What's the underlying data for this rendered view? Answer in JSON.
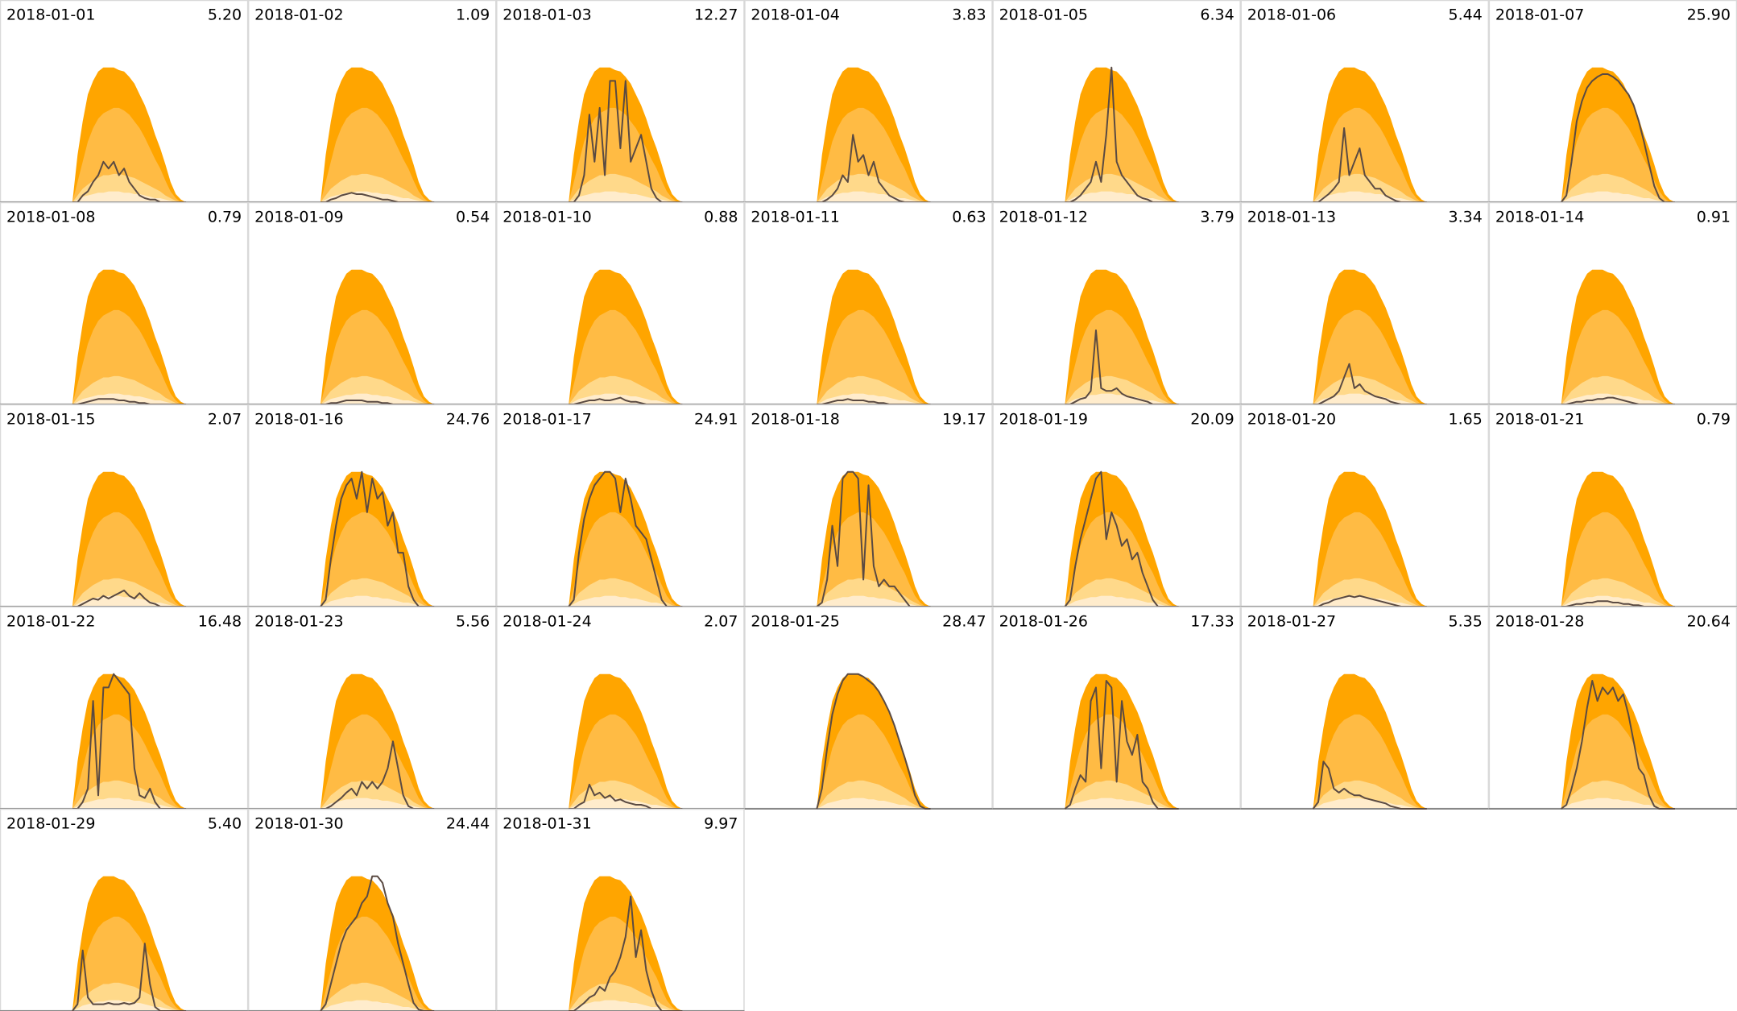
{
  "chart_data": {
    "type": "line",
    "columns": 7,
    "xlim": [
      0,
      24
    ],
    "ylim": [
      0,
      1.5
    ],
    "x": [
      7,
      7.5,
      8,
      8.5,
      9,
      9.5,
      10,
      10.5,
      11,
      11.5,
      12,
      12.5,
      13,
      13.5,
      14,
      14.5,
      15,
      15.5,
      16,
      16.5,
      17,
      17.5,
      18
    ],
    "line_color": "#5a4a42",
    "bands": [
      {
        "color": "#ffa500",
        "values": [
          0,
          0.35,
          0.6,
          0.8,
          0.9,
          0.97,
          1,
          1,
          1,
          0.98,
          0.97,
          0.93,
          0.88,
          0.8,
          0.72,
          0.62,
          0.5,
          0.4,
          0.28,
          0.15,
          0.06,
          0.02,
          0
        ]
      },
      {
        "color": "#ffbb44",
        "values": [
          0,
          0.15,
          0.3,
          0.45,
          0.55,
          0.62,
          0.66,
          0.68,
          0.7,
          0.7,
          0.68,
          0.65,
          0.6,
          0.55,
          0.48,
          0.4,
          0.32,
          0.25,
          0.16,
          0.08,
          0.03,
          0,
          0
        ]
      },
      {
        "color": "#ffd98a",
        "values": [
          0,
          0.05,
          0.1,
          0.13,
          0.16,
          0.18,
          0.2,
          0.2,
          0.21,
          0.21,
          0.2,
          0.19,
          0.18,
          0.16,
          0.14,
          0.12,
          0.1,
          0.08,
          0.05,
          0.03,
          0.01,
          0,
          0
        ]
      },
      {
        "color": "#ffeccc",
        "values": [
          0,
          0.02,
          0.04,
          0.05,
          0.06,
          0.07,
          0.07,
          0.08,
          0.08,
          0.08,
          0.07,
          0.07,
          0.06,
          0.06,
          0.05,
          0.04,
          0.03,
          0.03,
          0.02,
          0.01,
          0,
          0,
          0
        ]
      }
    ],
    "panels": [
      {
        "title": "2018-01-01",
        "total": "5.20",
        "values": [
          0,
          0,
          0.05,
          0.08,
          0.15,
          0.2,
          0.3,
          0.25,
          0.3,
          0.2,
          0.25,
          0.15,
          0.1,
          0.05,
          0.03,
          0.02,
          0.02,
          0,
          0,
          0,
          0,
          0,
          0
        ]
      },
      {
        "title": "2018-01-02",
        "total": "1.09",
        "values": [
          0,
          0,
          0.02,
          0.03,
          0.05,
          0.06,
          0.07,
          0.06,
          0.06,
          0.05,
          0.04,
          0.03,
          0.02,
          0.02,
          0.01,
          0,
          0,
          0,
          0,
          0,
          0,
          0,
          0
        ]
      },
      {
        "title": "2018-01-03",
        "total": "12.27",
        "values": [
          0,
          0,
          0.05,
          0.2,
          0.65,
          0.3,
          0.7,
          0.2,
          0.9,
          0.9,
          0.4,
          0.9,
          0.3,
          0.4,
          0.5,
          0.3,
          0.1,
          0.03,
          0,
          0,
          0,
          0,
          0
        ]
      },
      {
        "title": "2018-01-04",
        "total": "3.83",
        "values": [
          0,
          0,
          0.02,
          0.05,
          0.1,
          0.2,
          0.15,
          0.5,
          0.3,
          0.35,
          0.2,
          0.3,
          0.15,
          0.1,
          0.05,
          0.03,
          0.01,
          0,
          0,
          0,
          0,
          0,
          0
        ]
      },
      {
        "title": "2018-01-05",
        "total": "6.34",
        "values": [
          0,
          0,
          0.02,
          0.05,
          0.1,
          0.15,
          0.3,
          0.15,
          0.5,
          1,
          0.3,
          0.2,
          0.15,
          0.1,
          0.05,
          0.03,
          0.02,
          0,
          0,
          0,
          0,
          0,
          0
        ]
      },
      {
        "title": "2018-01-06",
        "total": "5.44",
        "values": [
          0,
          0,
          0.03,
          0.06,
          0.1,
          0.15,
          0.55,
          0.2,
          0.3,
          0.4,
          0.2,
          0.15,
          0.1,
          0.1,
          0.05,
          0.03,
          0.01,
          0,
          0,
          0,
          0,
          0,
          0
        ]
      },
      {
        "title": "2018-01-07",
        "total": "25.90",
        "values": [
          0,
          0.05,
          0.3,
          0.6,
          0.75,
          0.85,
          0.9,
          0.93,
          0.95,
          0.95,
          0.93,
          0.9,
          0.85,
          0.8,
          0.72,
          0.6,
          0.45,
          0.28,
          0.12,
          0.03,
          0,
          0,
          0
        ]
      },
      {
        "title": "2018-01-08",
        "total": "0.79",
        "values": [
          0,
          0,
          0.01,
          0.02,
          0.03,
          0.04,
          0.04,
          0.04,
          0.04,
          0.03,
          0.03,
          0.02,
          0.02,
          0.01,
          0.01,
          0,
          0,
          0,
          0,
          0,
          0,
          0,
          0
        ]
      },
      {
        "title": "2018-01-09",
        "total": "0.54",
        "values": [
          0,
          0,
          0.01,
          0.01,
          0.02,
          0.03,
          0.03,
          0.03,
          0.03,
          0.02,
          0.02,
          0.02,
          0.01,
          0.01,
          0,
          0,
          0,
          0,
          0,
          0,
          0,
          0,
          0
        ]
      },
      {
        "title": "2018-01-10",
        "total": "0.88",
        "values": [
          0,
          0,
          0.01,
          0.02,
          0.03,
          0.03,
          0.04,
          0.03,
          0.03,
          0.04,
          0.05,
          0.03,
          0.02,
          0.02,
          0.01,
          0,
          0,
          0,
          0,
          0,
          0,
          0,
          0
        ]
      },
      {
        "title": "2018-01-11",
        "total": "0.63",
        "values": [
          0,
          0,
          0.01,
          0.02,
          0.03,
          0.03,
          0.04,
          0.03,
          0.03,
          0.03,
          0.02,
          0.02,
          0.01,
          0.01,
          0,
          0,
          0,
          0,
          0,
          0,
          0,
          0,
          0
        ]
      },
      {
        "title": "2018-01-12",
        "total": "3.79",
        "values": [
          0,
          0,
          0.02,
          0.04,
          0.05,
          0.1,
          0.55,
          0.12,
          0.1,
          0.1,
          0.12,
          0.08,
          0.06,
          0.05,
          0.04,
          0.03,
          0.02,
          0,
          0,
          0,
          0,
          0,
          0
        ]
      },
      {
        "title": "2018-01-13",
        "total": "3.34",
        "values": [
          0,
          0,
          0.02,
          0.04,
          0.06,
          0.1,
          0.2,
          0.3,
          0.12,
          0.15,
          0.1,
          0.08,
          0.06,
          0.05,
          0.04,
          0.02,
          0.01,
          0,
          0,
          0,
          0,
          0,
          0
        ]
      },
      {
        "title": "2018-01-14",
        "total": "0.91",
        "values": [
          0,
          0,
          0.01,
          0.02,
          0.02,
          0.03,
          0.03,
          0.04,
          0.04,
          0.05,
          0.05,
          0.04,
          0.03,
          0.02,
          0.01,
          0,
          0,
          0,
          0,
          0,
          0,
          0,
          0
        ]
      },
      {
        "title": "2018-01-15",
        "total": "2.07",
        "values": [
          0,
          0,
          0.02,
          0.04,
          0.06,
          0.05,
          0.08,
          0.06,
          0.08,
          0.1,
          0.12,
          0.08,
          0.06,
          0.1,
          0.06,
          0.03,
          0.02,
          0,
          0,
          0,
          0,
          0,
          0
        ]
      },
      {
        "title": "2018-01-16",
        "total": "24.76",
        "values": [
          0,
          0.05,
          0.35,
          0.6,
          0.8,
          0.9,
          0.95,
          0.8,
          1,
          0.7,
          0.95,
          0.8,
          0.85,
          0.6,
          0.7,
          0.4,
          0.4,
          0.15,
          0.05,
          0,
          0,
          0,
          0
        ]
      },
      {
        "title": "2018-01-17",
        "total": "24.91",
        "values": [
          0,
          0.05,
          0.4,
          0.65,
          0.8,
          0.9,
          0.95,
          1,
          1,
          0.95,
          0.7,
          0.95,
          0.8,
          0.6,
          0.55,
          0.5,
          0.35,
          0.2,
          0.05,
          0,
          0,
          0,
          0
        ]
      },
      {
        "title": "2018-01-18",
        "total": "19.17",
        "values": [
          0,
          0.03,
          0.2,
          0.6,
          0.3,
          0.95,
          1,
          1,
          0.95,
          0.2,
          0.9,
          0.3,
          0.15,
          0.2,
          0.15,
          0.15,
          0.1,
          0.05,
          0,
          0,
          0,
          0,
          0
        ]
      },
      {
        "title": "2018-01-19",
        "total": "20.09",
        "values": [
          0,
          0.05,
          0.3,
          0.5,
          0.65,
          0.8,
          0.95,
          1,
          0.5,
          0.7,
          0.6,
          0.45,
          0.5,
          0.35,
          0.4,
          0.25,
          0.15,
          0.05,
          0,
          0,
          0,
          0,
          0
        ]
      },
      {
        "title": "2018-01-20",
        "total": "1.65",
        "values": [
          0,
          0,
          0.02,
          0.03,
          0.05,
          0.06,
          0.07,
          0.08,
          0.07,
          0.08,
          0.07,
          0.06,
          0.05,
          0.04,
          0.03,
          0.02,
          0.01,
          0,
          0,
          0,
          0,
          0,
          0
        ]
      },
      {
        "title": "2018-01-21",
        "total": "0.79",
        "values": [
          0,
          0,
          0.01,
          0.02,
          0.02,
          0.03,
          0.03,
          0.04,
          0.04,
          0.04,
          0.03,
          0.03,
          0.02,
          0.02,
          0.01,
          0.01,
          0,
          0,
          0,
          0,
          0,
          0,
          0
        ]
      },
      {
        "title": "2018-01-22",
        "total": "16.48",
        "values": [
          0,
          0,
          0.05,
          0.15,
          0.8,
          0.1,
          0.9,
          0.9,
          1,
          0.95,
          0.9,
          0.85,
          0.3,
          0.1,
          0.08,
          0.15,
          0.05,
          0,
          0,
          0,
          0,
          0,
          0
        ]
      },
      {
        "title": "2018-01-23",
        "total": "5.56",
        "values": [
          0,
          0,
          0.02,
          0.05,
          0.08,
          0.12,
          0.15,
          0.1,
          0.2,
          0.15,
          0.2,
          0.15,
          0.2,
          0.3,
          0.5,
          0.3,
          0.1,
          0.02,
          0,
          0,
          0,
          0,
          0
        ]
      },
      {
        "title": "2018-01-24",
        "total": "2.07",
        "values": [
          0,
          0,
          0.03,
          0.05,
          0.18,
          0.1,
          0.12,
          0.08,
          0.1,
          0.06,
          0.07,
          0.05,
          0.04,
          0.03,
          0.03,
          0.02,
          0,
          0,
          0,
          0,
          0,
          0,
          0
        ]
      },
      {
        "title": "2018-01-25",
        "total": "28.47",
        "values": [
          0,
          0.15,
          0.45,
          0.7,
          0.85,
          0.95,
          1,
          1,
          1,
          0.98,
          0.95,
          0.92,
          0.87,
          0.8,
          0.72,
          0.62,
          0.5,
          0.38,
          0.25,
          0.1,
          0.02,
          0,
          0
        ]
      },
      {
        "title": "2018-01-26",
        "total": "17.33",
        "values": [
          0,
          0.03,
          0.15,
          0.25,
          0.2,
          0.8,
          0.9,
          0.3,
          0.95,
          0.9,
          0.2,
          0.8,
          0.5,
          0.4,
          0.55,
          0.2,
          0.15,
          0.05,
          0,
          0,
          0,
          0,
          0
        ]
      },
      {
        "title": "2018-01-27",
        "total": "5.35",
        "values": [
          0,
          0.05,
          0.35,
          0.3,
          0.15,
          0.12,
          0.15,
          0.12,
          0.1,
          0.1,
          0.08,
          0.07,
          0.06,
          0.05,
          0.04,
          0.02,
          0.01,
          0,
          0,
          0,
          0,
          0,
          0
        ]
      },
      {
        "title": "2018-01-28",
        "total": "20.64",
        "values": [
          0,
          0.03,
          0.15,
          0.3,
          0.5,
          0.75,
          0.95,
          0.8,
          0.9,
          0.85,
          0.9,
          0.8,
          0.85,
          0.7,
          0.5,
          0.3,
          0.25,
          0.1,
          0.02,
          0,
          0,
          0,
          0
        ]
      },
      {
        "title": "2018-01-29",
        "total": "5.40",
        "values": [
          0,
          0.05,
          0.45,
          0.1,
          0.05,
          0.05,
          0.05,
          0.06,
          0.05,
          0.05,
          0.06,
          0.05,
          0.06,
          0.1,
          0.5,
          0.2,
          0.03,
          0,
          0,
          0,
          0,
          0,
          0
        ]
      },
      {
        "title": "2018-01-30",
        "total": "24.44",
        "values": [
          0,
          0.05,
          0.2,
          0.35,
          0.5,
          0.6,
          0.65,
          0.7,
          0.8,
          0.85,
          1,
          1,
          0.95,
          0.8,
          0.7,
          0.5,
          0.35,
          0.2,
          0.06,
          0.01,
          0,
          0,
          0
        ]
      },
      {
        "title": "2018-01-31",
        "total": "9.97",
        "values": [
          0,
          0,
          0.03,
          0.06,
          0.1,
          0.12,
          0.18,
          0.15,
          0.25,
          0.3,
          0.4,
          0.55,
          0.85,
          0.4,
          0.6,
          0.3,
          0.15,
          0.05,
          0,
          0,
          0,
          0,
          0
        ]
      }
    ]
  }
}
